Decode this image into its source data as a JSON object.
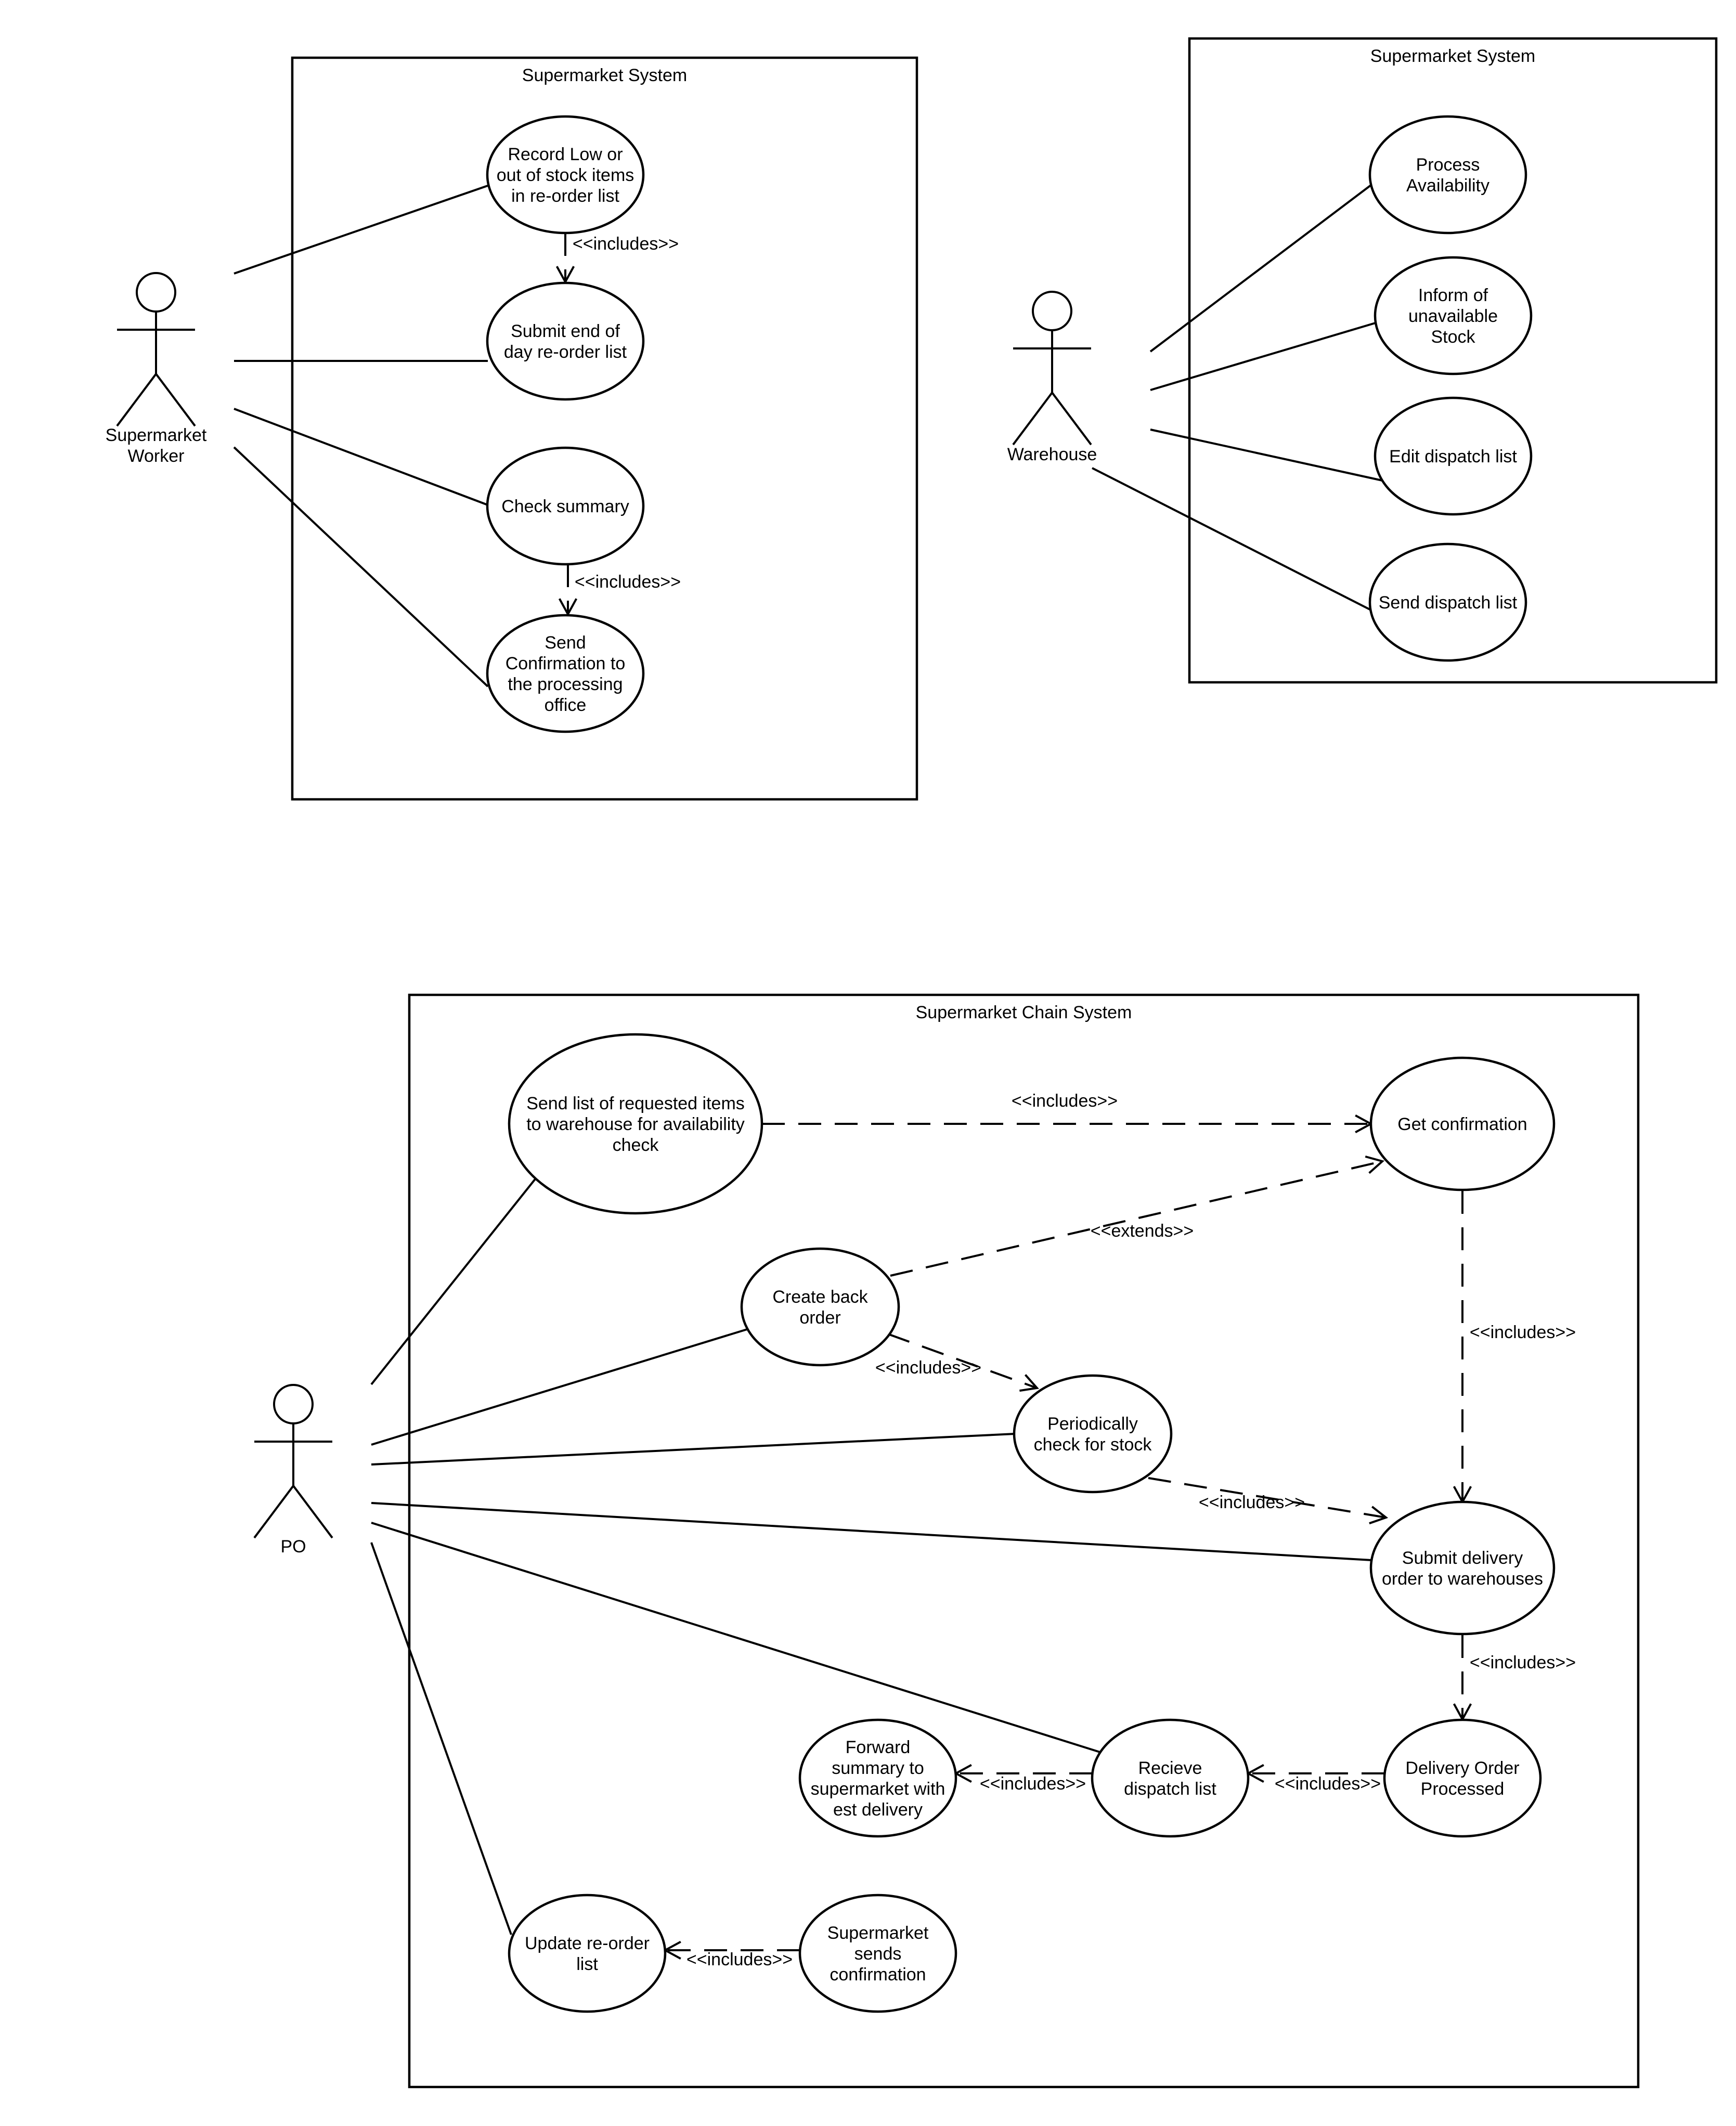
{
  "systems": [
    {
      "id": "sys1",
      "title": "Supermarket System"
    },
    {
      "id": "sys2",
      "title": "Supermarket System"
    },
    {
      "id": "sys3",
      "title": "Supermarket Chain System"
    }
  ],
  "actors": [
    {
      "id": "worker",
      "label": [
        "Supermarket",
        "Worker"
      ]
    },
    {
      "id": "warehouse",
      "label": [
        "Warehouse"
      ]
    },
    {
      "id": "po",
      "label": [
        "PO"
      ]
    }
  ],
  "use_cases": [
    {
      "id": "record",
      "lines": [
        "Record Low or",
        "out of stock items",
        "in re-order list"
      ]
    },
    {
      "id": "submit_eod",
      "lines": [
        "Submit end of",
        "day re-order list"
      ]
    },
    {
      "id": "check_summary",
      "lines": [
        "Check summary"
      ]
    },
    {
      "id": "send_conf",
      "lines": [
        "Send",
        "Confirmation to",
        "the processing",
        "office"
      ]
    },
    {
      "id": "process_avail",
      "lines": [
        "Process",
        "Availability"
      ]
    },
    {
      "id": "inform_unavail",
      "lines": [
        "Inform of",
        "unavailable",
        "Stock"
      ]
    },
    {
      "id": "edit_dispatch",
      "lines": [
        "Edit dispatch list"
      ]
    },
    {
      "id": "send_dispatch",
      "lines": [
        "Send dispatch list"
      ]
    },
    {
      "id": "send_list",
      "lines": [
        "Send list of requested items",
        "to warehouse for availability",
        "check"
      ]
    },
    {
      "id": "get_conf",
      "lines": [
        "Get confirmation"
      ]
    },
    {
      "id": "back_order",
      "lines": [
        "Create back",
        "order"
      ]
    },
    {
      "id": "periodic",
      "lines": [
        "Periodically",
        "check for stock"
      ]
    },
    {
      "id": "submit_delivery",
      "lines": [
        "Submit delivery",
        "order to warehouses"
      ]
    },
    {
      "id": "forward",
      "lines": [
        "Forward",
        "summary to",
        "supermarket with",
        "est delivery"
      ]
    },
    {
      "id": "receive",
      "lines": [
        "Recieve",
        "dispatch list"
      ]
    },
    {
      "id": "delivery_processed",
      "lines": [
        "Delivery Order",
        "Processed"
      ]
    },
    {
      "id": "update_list",
      "lines": [
        "Update re-order",
        "list"
      ]
    },
    {
      "id": "sm_sends",
      "lines": [
        "Supermarket",
        "sends",
        "confirmation"
      ]
    }
  ],
  "associations": [
    {
      "actor": "worker",
      "use_case": "record"
    },
    {
      "actor": "worker",
      "use_case": "submit_eod"
    },
    {
      "actor": "worker",
      "use_case": "check_summary"
    },
    {
      "actor": "worker",
      "use_case": "send_conf"
    },
    {
      "actor": "warehouse",
      "use_case": "process_avail"
    },
    {
      "actor": "warehouse",
      "use_case": "inform_unavail"
    },
    {
      "actor": "warehouse",
      "use_case": "edit_dispatch"
    },
    {
      "actor": "warehouse",
      "use_case": "send_dispatch"
    },
    {
      "actor": "po",
      "use_case": "send_list"
    },
    {
      "actor": "po",
      "use_case": "back_order"
    },
    {
      "actor": "po",
      "use_case": "periodic"
    },
    {
      "actor": "po",
      "use_case": "submit_delivery"
    },
    {
      "actor": "po",
      "use_case": "receive"
    },
    {
      "actor": "po",
      "use_case": "update_list"
    }
  ],
  "dependencies": [
    {
      "from": "record",
      "to": "submit_eod",
      "label": "<<includes>>"
    },
    {
      "from": "check_summary",
      "to": "send_conf",
      "label": "<<includes>>"
    },
    {
      "from": "send_list",
      "to": "get_conf",
      "label": "<<includes>>"
    },
    {
      "from": "back_order",
      "to": "get_conf",
      "label": "<<extends>>"
    },
    {
      "from": "back_order",
      "to": "periodic",
      "label": "<<includes>>"
    },
    {
      "from": "get_conf",
      "to": "submit_delivery",
      "label": "<<includes>>"
    },
    {
      "from": "periodic",
      "to": "submit_delivery",
      "label": "<<includes>>"
    },
    {
      "from": "submit_delivery",
      "to": "delivery_processed",
      "label": "<<includes>>"
    },
    {
      "from": "delivery_processed",
      "to": "receive",
      "label": "<<includes>>"
    },
    {
      "from": "receive",
      "to": "forward",
      "label": "<<includes>>"
    },
    {
      "from": "sm_sends",
      "to": "update_list",
      "label": "<<includes>>"
    }
  ]
}
